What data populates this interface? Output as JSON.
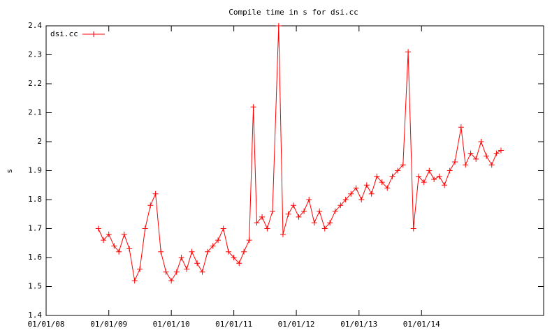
{
  "chart_data": {
    "type": "line",
    "title": "Compile time in s for dsi.cc",
    "ylabel": "s",
    "x": [
      "2008-11-01",
      "2008-12-01",
      "2009-01-01",
      "2009-02-01",
      "2009-03-01",
      "2009-04-01",
      "2009-05-01",
      "2009-06-01",
      "2009-07-01",
      "2009-08-01",
      "2009-09-01",
      "2009-10-01",
      "2009-11-01",
      "2009-12-01",
      "2010-01-01",
      "2010-02-01",
      "2010-03-01",
      "2010-04-01",
      "2010-05-01",
      "2010-06-01",
      "2010-07-01",
      "2010-08-01",
      "2010-09-01",
      "2010-10-01",
      "2010-11-01",
      "2010-12-01",
      "2011-01-01",
      "2011-02-01",
      "2011-03-01",
      "2011-04-01",
      "2011-04-25",
      "2011-05-15",
      "2011-06-15",
      "2011-07-15",
      "2011-08-15",
      "2011-09-20",
      "2011-10-15",
      "2011-11-15",
      "2011-12-15",
      "2012-01-15",
      "2012-02-15",
      "2012-03-15",
      "2012-04-15",
      "2012-05-15",
      "2012-06-15",
      "2012-07-15",
      "2012-08-15",
      "2012-09-15",
      "2012-10-15",
      "2012-11-15",
      "2012-12-15",
      "2013-01-15",
      "2013-02-15",
      "2013-03-15",
      "2013-04-15",
      "2013-05-15",
      "2013-06-15",
      "2013-07-15",
      "2013-08-15",
      "2013-09-15",
      "2013-10-15",
      "2013-11-15",
      "2013-12-15",
      "2014-01-15",
      "2014-02-15",
      "2014-03-15",
      "2014-04-15",
      "2014-05-15",
      "2014-06-15",
      "2014-07-15",
      "2014-08-20",
      "2014-09-15",
      "2014-10-15",
      "2014-11-15",
      "2014-12-15",
      "2015-01-15",
      "2015-02-15",
      "2015-03-15",
      "2015-04-10"
    ],
    "series": [
      {
        "name": "dsi.cc",
        "color": "#ff0000",
        "values": [
          1.7,
          1.66,
          1.68,
          1.64,
          1.62,
          1.68,
          1.63,
          1.52,
          1.56,
          1.7,
          1.78,
          1.82,
          1.62,
          1.55,
          1.52,
          1.55,
          1.6,
          1.56,
          1.62,
          1.58,
          1.55,
          1.62,
          1.64,
          1.66,
          1.7,
          1.62,
          1.6,
          1.58,
          1.62,
          1.66,
          2.12,
          1.72,
          1.74,
          1.7,
          1.76,
          2.4,
          1.68,
          1.75,
          1.78,
          1.74,
          1.76,
          1.8,
          1.72,
          1.76,
          1.7,
          1.72,
          1.76,
          1.78,
          1.8,
          1.82,
          1.84,
          1.8,
          1.85,
          1.82,
          1.88,
          1.86,
          1.84,
          1.88,
          1.9,
          1.92,
          2.31,
          1.7,
          1.88,
          1.86,
          1.9,
          1.87,
          1.88,
          1.85,
          1.9,
          1.93,
          2.05,
          1.92,
          1.96,
          1.94,
          2.0,
          1.95,
          1.92,
          1.96,
          1.97
        ]
      }
    ],
    "xlim": [
      "2008-01-01",
      "2015-12-15"
    ],
    "xticks": [
      {
        "value": "2008-01-01",
        "label": "01/01/08"
      },
      {
        "value": "2009-01-01",
        "label": "01/01/09"
      },
      {
        "value": "2010-01-01",
        "label": "01/01/10"
      },
      {
        "value": "2011-01-01",
        "label": "01/01/11"
      },
      {
        "value": "2012-01-01",
        "label": "01/01/12"
      },
      {
        "value": "2013-01-01",
        "label": "01/01/13"
      },
      {
        "value": "2014-01-01",
        "label": "01/01/14"
      }
    ],
    "ylim": [
      1.4,
      2.4
    ],
    "yticks": [
      1.4,
      1.5,
      1.6,
      1.7,
      1.8,
      1.9,
      2,
      2.1,
      2.2,
      2.3,
      2.4
    ],
    "grid": false,
    "legend": "top-left"
  }
}
